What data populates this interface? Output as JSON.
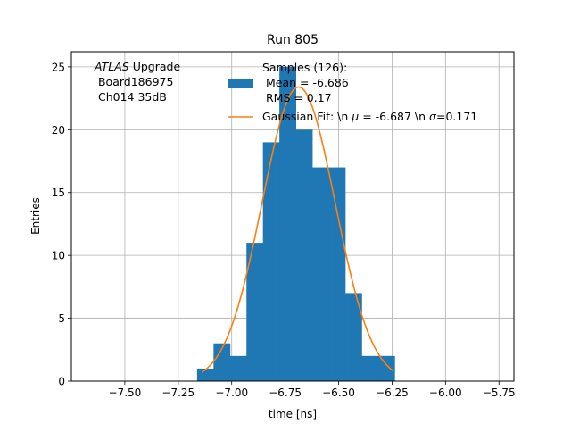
{
  "chart_data": {
    "type": "bar",
    "title": "Run 805",
    "xlabel": "time [ns]",
    "ylabel": "Entries",
    "xlim": [
      -7.75,
      -5.68
    ],
    "ylim": [
      0,
      26.2
    ],
    "grid": true,
    "xticks": [
      -7.5,
      -7.25,
      -7.0,
      -6.75,
      -6.5,
      -6.25,
      -6.0,
      -5.75
    ],
    "xtick_labels": [
      "−7.50",
      "−7.25",
      "−7.00",
      "−6.75",
      "−6.50",
      "−6.25",
      "−6.00",
      "−5.75"
    ],
    "yticks": [
      0,
      5,
      10,
      15,
      20,
      25
    ],
    "ytick_labels": [
      "0",
      "5",
      "10",
      "15",
      "20",
      "25"
    ],
    "annotation": {
      "atlas": "ATLAS",
      "upgrade": " Upgrade",
      "line2": " Board186975",
      "line3": " Ch014 35dB"
    },
    "histogram": {
      "color": "#1f77b4",
      "bin_edges": [
        -7.162,
        -7.085,
        -7.008,
        -6.931,
        -6.854,
        -6.777,
        -6.7,
        -6.623,
        -6.546,
        -6.469,
        -6.392,
        -6.315,
        -6.238
      ],
      "counts": [
        1,
        3,
        2,
        11,
        19,
        25,
        20,
        17,
        17,
        7,
        2,
        2
      ]
    },
    "fit": {
      "color": "#ff7f0e",
      "mu": -6.687,
      "sigma": 0.171,
      "amplitude": 23.4,
      "x_range": [
        -7.14,
        -6.245
      ]
    },
    "legend": {
      "position": "top-right",
      "hist_label_line1": "Samples (126):",
      "hist_label_line2": " Mean = -6.686",
      "hist_label_line3": " RMS = 0.17",
      "fit_label_prefix": "Gaussian Fit: \\n ",
      "fit_mu_symbol": "μ",
      "fit_mu_value": " = -6.687 \\n ",
      "fit_sigma_symbol": "σ",
      "fit_sigma_value": "=0.171"
    }
  }
}
